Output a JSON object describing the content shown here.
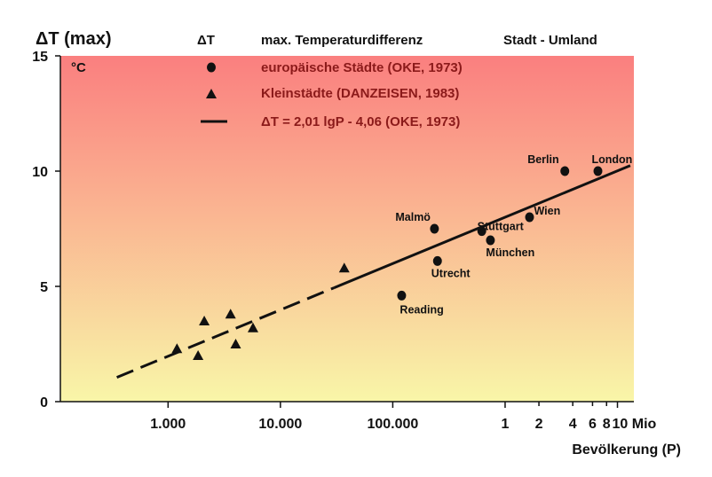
{
  "chart_data": {
    "type": "scatter",
    "title": "",
    "ylabel": "ΔT (max)",
    "yunit": "°C",
    "xlabel": "Bevölkerung (P)",
    "xscale": "log",
    "xlim": [
      110,
      14000000
    ],
    "ylim": [
      0,
      15
    ],
    "grid": false,
    "background_gradient": {
      "top": "#fa7f7f",
      "bottom": "#f9f6a8"
    },
    "y_ticks": [
      {
        "value": 0,
        "label": "0"
      },
      {
        "value": 5,
        "label": "5"
      },
      {
        "value": 10,
        "label": "10"
      },
      {
        "value": 15,
        "label": "15"
      }
    ],
    "x_ticks": [
      {
        "value": 1000,
        "label": "1.000"
      },
      {
        "value": 10000,
        "label": "10.000"
      },
      {
        "value": 100000,
        "label": "100.000"
      },
      {
        "value": 1000000,
        "label": "1"
      },
      {
        "value": 2000000,
        "label": "2"
      },
      {
        "value": 4000000,
        "label": "4"
      },
      {
        "value": 6000000,
        "label": "6"
      },
      {
        "value": 8000000,
        "label": "8"
      },
      {
        "value": 10000000,
        "label": "10 Mio"
      }
    ],
    "legend": {
      "header_symbol": "ΔT",
      "header_text": "max. Temperaturdifferenz",
      "header_right": "Stadt - Umland",
      "entries": [
        {
          "marker": "circle",
          "label": "europäische Städte (OKE, 1973)"
        },
        {
          "marker": "triangle",
          "label": "Kleinstädte (DANZEISEN, 1983)"
        },
        {
          "marker": "line",
          "label": "ΔT = 2,01 lgP - 4,06 (OKE, 1973)"
        }
      ]
    },
    "series": [
      {
        "name": "europäische Städte (OKE, 1973)",
        "marker": "circle",
        "points": [
          {
            "x": 120000,
            "y": 4.6,
            "label": "Reading"
          },
          {
            "x": 250000,
            "y": 6.1,
            "label": "Utrecht"
          },
          {
            "x": 235000,
            "y": 7.5,
            "label": "Malmö"
          },
          {
            "x": 620000,
            "y": 7.4,
            "label": "Stuttgart"
          },
          {
            "x": 740000,
            "y": 7.0,
            "label": "München"
          },
          {
            "x": 1650000,
            "y": 8.0,
            "label": "Wien"
          },
          {
            "x": 3400000,
            "y": 10.0,
            "label": "Berlin"
          },
          {
            "x": 6700000,
            "y": 10.0,
            "label": "London"
          }
        ]
      },
      {
        "name": "Kleinstädte (DANZEISEN, 1983)",
        "marker": "triangle",
        "points": [
          {
            "x": 1200,
            "y": 2.3
          },
          {
            "x": 1850,
            "y": 2.0
          },
          {
            "x": 2100,
            "y": 3.5
          },
          {
            "x": 3600,
            "y": 3.8
          },
          {
            "x": 4000,
            "y": 2.5
          },
          {
            "x": 5700,
            "y": 3.2
          },
          {
            "x": 37000,
            "y": 5.8
          }
        ]
      }
    ],
    "regression": {
      "label": "ΔT = 2,01 lgP - 4,06 (OKE, 1973)",
      "slope": 2.01,
      "intercept": -4.06,
      "x_start": 350,
      "x_solid_from": 30000,
      "x_end": 13000000
    }
  }
}
